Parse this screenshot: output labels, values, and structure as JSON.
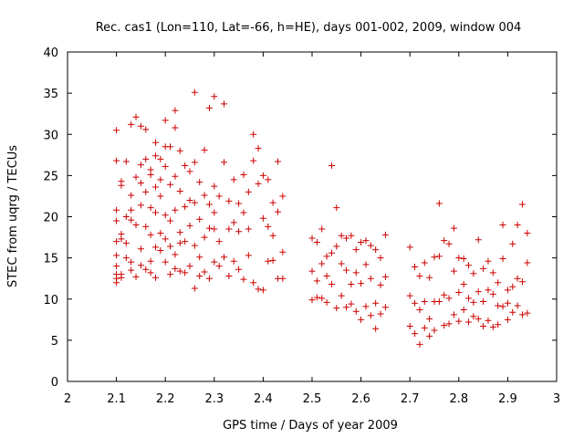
{
  "chart_data": {
    "type": "scatter",
    "title": "Rec. cas1 (Lon=110, Lat=-66, h=HE), days 001-002, 2009, window 004",
    "xlabel": "GPS time / Days of year 2009",
    "ylabel": "STEC from uqrg / TECUs",
    "xlim": [
      2,
      3
    ],
    "ylim": [
      0,
      40
    ],
    "xticks": [
      "2",
      "2.1",
      "2.2",
      "2.3",
      "2.4",
      "2.5",
      "2.6",
      "2.7",
      "2.8",
      "2.9",
      "3"
    ],
    "yticks": [
      "0",
      "5",
      "10",
      "15",
      "20",
      "25",
      "30",
      "35",
      "40"
    ],
    "grid": false,
    "marker": "+",
    "colors": {
      "points": "#cc0000",
      "axes": "#000000"
    },
    "series": [
      {
        "x": [
          2.1,
          2.1,
          2.1,
          2.1,
          2.1,
          2.1,
          2.1,
          2.1,
          2.1,
          2.1,
          2.11,
          2.11,
          2.11,
          2.11,
          2.11,
          2.11,
          2.12,
          2.12,
          2.12,
          2.12,
          2.13,
          2.13,
          2.13,
          2.13,
          2.13,
          2.13,
          2.14,
          2.14,
          2.14,
          2.14,
          2.15,
          2.15,
          2.15,
          2.15,
          2.15,
          2.15,
          2.16,
          2.16,
          2.16,
          2.16,
          2.16,
          2.17,
          2.17,
          2.17,
          2.17,
          2.17,
          2.17,
          2.18,
          2.18,
          2.18,
          2.18,
          2.18,
          2.18,
          2.19,
          2.19,
          2.19,
          2.19,
          2.19,
          2.2,
          2.2,
          2.2,
          2.2,
          2.2,
          2.2,
          2.21,
          2.21,
          2.21,
          2.21,
          2.21,
          2.22,
          2.22,
          2.22,
          2.22,
          2.22,
          2.22,
          2.23,
          2.23,
          2.23,
          2.23,
          2.23,
          2.24,
          2.24,
          2.24,
          2.24,
          2.25,
          2.25,
          2.25,
          2.25,
          2.26,
          2.26,
          2.26,
          2.26,
          2.26,
          2.27,
          2.27,
          2.27,
          2.27,
          2.28,
          2.28,
          2.28,
          2.28,
          2.29,
          2.29,
          2.29,
          2.29,
          2.3,
          2.3,
          2.3,
          2.3,
          2.3,
          2.31,
          2.31,
          2.31,
          2.32,
          2.32,
          2.32,
          2.33,
          2.33,
          2.33,
          2.34,
          2.34,
          2.34,
          2.35,
          2.35,
          2.35,
          2.36,
          2.36,
          2.36,
          2.37,
          2.37,
          2.37,
          2.38,
          2.38,
          2.38,
          2.39,
          2.39,
          2.39,
          2.4,
          2.4,
          2.4,
          2.41,
          2.41,
          2.41,
          2.42,
          2.42,
          2.42,
          2.43,
          2.43,
          2.43,
          2.44,
          2.44,
          2.44,
          2.5,
          2.5,
          2.5,
          2.51,
          2.51,
          2.51,
          2.52,
          2.52,
          2.52,
          2.53,
          2.53,
          2.53,
          2.54,
          2.54,
          2.54,
          2.55,
          2.55,
          2.55,
          2.56,
          2.56,
          2.56,
          2.57,
          2.57,
          2.57,
          2.58,
          2.58,
          2.58,
          2.59,
          2.59,
          2.59,
          2.6,
          2.6,
          2.6,
          2.61,
          2.61,
          2.61,
          2.62,
          2.62,
          2.62,
          2.63,
          2.63,
          2.63,
          2.64,
          2.64,
          2.64,
          2.65,
          2.65,
          2.65,
          2.7,
          2.7,
          2.7,
          2.71,
          2.71,
          2.71,
          2.72,
          2.72,
          2.72,
          2.73,
          2.73,
          2.73,
          2.74,
          2.74,
          2.74,
          2.75,
          2.75,
          2.75,
          2.76,
          2.76,
          2.76,
          2.77,
          2.77,
          2.77,
          2.78,
          2.78,
          2.78,
          2.79,
          2.79,
          2.79,
          2.8,
          2.8,
          2.8,
          2.81,
          2.81,
          2.81,
          2.82,
          2.82,
          2.82,
          2.83,
          2.83,
          2.83,
          2.84,
          2.84,
          2.84,
          2.85,
          2.85,
          2.85,
          2.86,
          2.86,
          2.86,
          2.87,
          2.87,
          2.87,
          2.88,
          2.88,
          2.88,
          2.89,
          2.89,
          2.89,
          2.9,
          2.9,
          2.9,
          2.91,
          2.91,
          2.91,
          2.92,
          2.92,
          2.92,
          2.93,
          2.93,
          2.93,
          2.94,
          2.94,
          2.94
        ],
        "y": [
          30.5,
          26.8,
          20.8,
          19.5,
          17.0,
          15.3,
          14.0,
          13.0,
          12.5,
          12.0,
          24.3,
          23.8,
          17.9,
          17.3,
          13.0,
          12.6,
          26.7,
          20.0,
          16.8,
          15.0,
          31.2,
          22.6,
          20.8,
          19.6,
          14.5,
          13.5,
          32.1,
          24.8,
          19.0,
          12.7,
          31.0,
          26.3,
          24.1,
          21.4,
          16.1,
          14.1,
          30.6,
          27.0,
          23.0,
          18.8,
          13.6,
          25.7,
          25.1,
          21.1,
          17.8,
          14.6,
          13.2,
          29.0,
          27.4,
          23.6,
          20.5,
          16.3,
          12.6,
          27.0,
          24.5,
          22.5,
          18.0,
          15.9,
          31.7,
          28.5,
          26.1,
          20.2,
          17.3,
          14.5,
          28.5,
          23.9,
          19.5,
          16.4,
          13.0,
          32.9,
          30.8,
          24.9,
          20.8,
          15.4,
          13.7,
          28.0,
          23.1,
          18.1,
          16.8,
          13.4,
          26.2,
          21.2,
          17.0,
          13.2,
          25.5,
          22.0,
          18.9,
          14.0,
          35.1,
          26.6,
          21.7,
          16.5,
          11.3,
          24.2,
          19.7,
          15.1,
          12.8,
          28.1,
          22.6,
          17.5,
          13.3,
          33.2,
          21.5,
          18.6,
          12.5,
          34.6,
          23.7,
          20.5,
          18.5,
          14.5,
          22.5,
          17.0,
          14.0,
          33.7,
          26.6,
          15.1,
          21.9,
          18.5,
          12.8,
          24.5,
          19.3,
          14.6,
          21.6,
          18.2,
          13.6,
          25.1,
          20.5,
          12.4,
          23.0,
          18.5,
          15.3,
          30.0,
          26.8,
          12.0,
          28.3,
          24.0,
          11.2,
          25.0,
          19.8,
          11.1,
          24.5,
          18.8,
          14.6,
          21.7,
          17.7,
          14.7,
          26.7,
          20.6,
          12.5,
          22.5,
          15.7,
          12.5,
          17.4,
          13.4,
          9.9,
          16.9,
          12.2,
          10.2,
          18.5,
          14.3,
          10.1,
          15.2,
          12.8,
          9.6,
          26.2,
          15.6,
          11.8,
          21.1,
          16.4,
          8.9,
          17.7,
          14.3,
          10.4,
          17.4,
          13.5,
          9.0,
          17.7,
          11.8,
          9.4,
          16.0,
          13.2,
          8.5,
          16.9,
          11.9,
          7.5,
          17.1,
          14.2,
          9.1,
          16.5,
          12.5,
          8.0,
          16.0,
          9.5,
          6.4,
          15.0,
          11.7,
          8.2,
          17.8,
          12.7,
          9.0,
          16.3,
          10.4,
          6.7,
          13.9,
          9.5,
          5.8,
          12.8,
          8.7,
          4.5,
          14.4,
          9.7,
          6.5,
          12.6,
          7.6,
          5.5,
          15.1,
          9.7,
          6.2,
          21.6,
          15.2,
          9.7,
          17.1,
          10.5,
          6.8,
          16.7,
          10.1,
          7.0,
          18.6,
          13.4,
          8.1,
          15.0,
          10.8,
          7.3,
          14.9,
          11.8,
          8.7,
          14.1,
          10.1,
          7.2,
          13.1,
          9.6,
          7.9,
          17.2,
          10.9,
          7.6,
          13.7,
          9.7,
          6.7,
          14.6,
          11.1,
          7.4,
          13.2,
          10.6,
          6.6,
          12.0,
          9.2,
          6.9,
          19.0,
          14.9,
          9.1,
          11.1,
          9.5,
          7.5,
          16.7,
          11.5,
          8.4,
          19.0,
          12.5,
          9.2,
          21.5,
          12.1,
          8.1,
          18.0,
          14.4,
          8.3
        ]
      }
    ]
  }
}
